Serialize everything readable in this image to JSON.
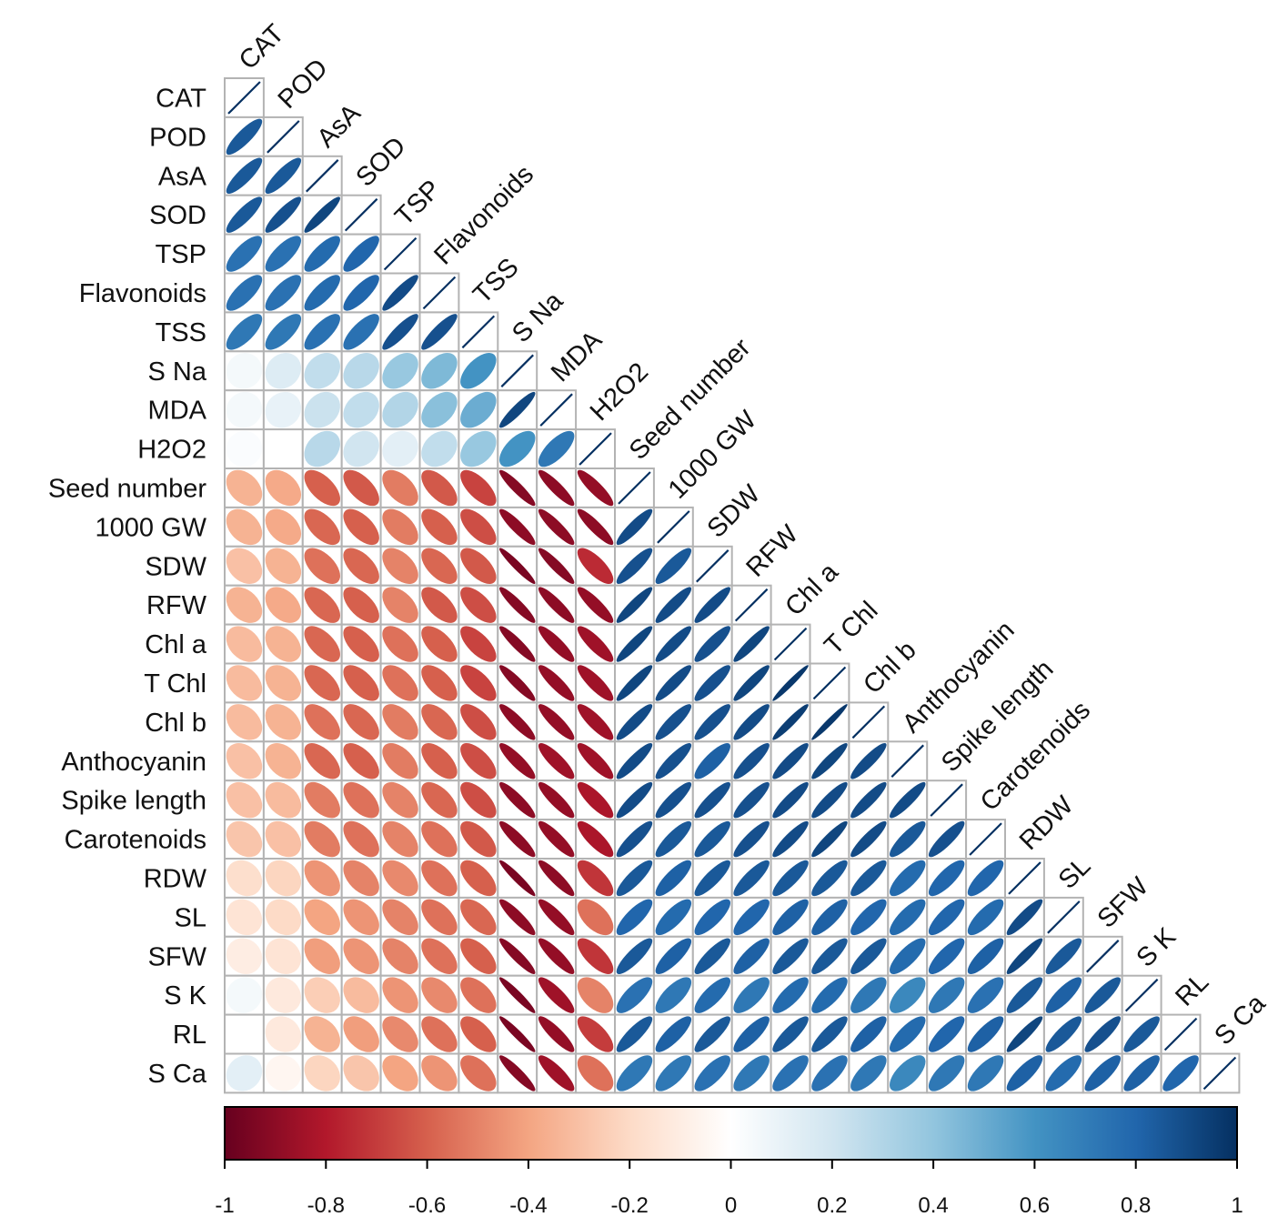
{
  "chart_data": {
    "type": "heatmap",
    "subtype": "correlation-ellipse-lower-triangle",
    "variables": [
      "CAT",
      "POD",
      "AsA",
      "SOD",
      "TSP",
      "Flavonoids",
      "TSS",
      "S Na",
      "MDA",
      "H2O2",
      "Seed number",
      "1000 GW",
      "SDW",
      "RFW",
      "Chl a",
      "T Chl",
      "Chl b",
      "Anthocyanin",
      "Spike length",
      "Carotenoids",
      "RDW",
      "SL",
      "SFW",
      "S K",
      "RL",
      "S Ca"
    ],
    "correlations": [
      [
        1
      ],
      [
        0.85,
        1
      ],
      [
        0.85,
        0.85,
        1
      ],
      [
        0.85,
        0.88,
        0.92,
        1
      ],
      [
        0.75,
        0.75,
        0.78,
        0.8,
        1
      ],
      [
        0.75,
        0.75,
        0.78,
        0.8,
        0.9,
        1
      ],
      [
        0.72,
        0.72,
        0.75,
        0.75,
        0.88,
        0.88,
        1
      ],
      [
        0.05,
        0.15,
        0.25,
        0.28,
        0.38,
        0.45,
        0.6,
        1
      ],
      [
        0.05,
        0.1,
        0.22,
        0.25,
        0.3,
        0.42,
        0.5,
        0.92,
        1
      ],
      [
        0.02,
        0.0,
        0.28,
        0.2,
        0.12,
        0.25,
        0.38,
        0.6,
        0.72,
        1
      ],
      [
        -0.35,
        -0.38,
        -0.6,
        -0.62,
        -0.52,
        -0.62,
        -0.68,
        -0.92,
        -0.9,
        -0.88,
        1
      ],
      [
        -0.35,
        -0.38,
        -0.58,
        -0.6,
        -0.52,
        -0.6,
        -0.65,
        -0.9,
        -0.9,
        -0.9,
        0.9,
        1
      ],
      [
        -0.3,
        -0.35,
        -0.55,
        -0.58,
        -0.5,
        -0.58,
        -0.62,
        -0.95,
        -0.92,
        -0.75,
        0.88,
        0.85,
        1
      ],
      [
        -0.35,
        -0.38,
        -0.58,
        -0.6,
        -0.5,
        -0.62,
        -0.65,
        -0.92,
        -0.9,
        -0.88,
        0.92,
        0.9,
        0.9,
        1
      ],
      [
        -0.32,
        -0.35,
        -0.58,
        -0.6,
        -0.55,
        -0.6,
        -0.68,
        -0.92,
        -0.88,
        -0.85,
        0.92,
        0.9,
        0.88,
        0.92,
        1
      ],
      [
        -0.32,
        -0.35,
        -0.58,
        -0.6,
        -0.55,
        -0.6,
        -0.68,
        -0.92,
        -0.88,
        -0.85,
        0.92,
        0.9,
        0.88,
        0.92,
        0.97,
        1
      ],
      [
        -0.32,
        -0.35,
        -0.55,
        -0.58,
        -0.52,
        -0.58,
        -0.65,
        -0.9,
        -0.88,
        -0.85,
        0.9,
        0.88,
        0.88,
        0.9,
        0.95,
        0.97,
        1
      ],
      [
        -0.3,
        -0.35,
        -0.58,
        -0.6,
        -0.52,
        -0.6,
        -0.65,
        -0.88,
        -0.85,
        -0.85,
        0.9,
        0.88,
        0.82,
        0.88,
        0.9,
        0.92,
        0.9,
        1
      ],
      [
        -0.3,
        -0.32,
        -0.52,
        -0.55,
        -0.5,
        -0.58,
        -0.65,
        -0.9,
        -0.88,
        -0.82,
        0.9,
        0.88,
        0.88,
        0.88,
        0.9,
        0.9,
        0.9,
        0.9,
        1
      ],
      [
        -0.28,
        -0.3,
        -0.52,
        -0.55,
        -0.5,
        -0.55,
        -0.62,
        -0.9,
        -0.88,
        -0.82,
        0.88,
        0.85,
        0.85,
        0.88,
        0.9,
        0.92,
        0.9,
        0.85,
        0.88,
        1
      ],
      [
        -0.18,
        -0.22,
        -0.45,
        -0.5,
        -0.48,
        -0.55,
        -0.6,
        -0.95,
        -0.9,
        -0.72,
        0.85,
        0.82,
        0.85,
        0.85,
        0.85,
        0.85,
        0.85,
        0.78,
        0.8,
        0.8,
        1
      ],
      [
        -0.15,
        -0.2,
        -0.4,
        -0.45,
        -0.5,
        -0.55,
        -0.58,
        -0.9,
        -0.88,
        -0.55,
        0.8,
        0.78,
        0.8,
        0.8,
        0.82,
        0.82,
        0.8,
        0.78,
        0.8,
        0.78,
        0.9,
        1
      ],
      [
        -0.1,
        -0.15,
        -0.42,
        -0.45,
        -0.5,
        -0.55,
        -0.6,
        -0.92,
        -0.88,
        -0.72,
        0.85,
        0.82,
        0.85,
        0.82,
        0.85,
        0.85,
        0.85,
        0.78,
        0.8,
        0.82,
        0.92,
        0.85,
        1
      ],
      [
        0.05,
        -0.12,
        -0.25,
        -0.32,
        -0.45,
        -0.48,
        -0.55,
        -0.95,
        -0.85,
        -0.5,
        0.75,
        0.72,
        0.78,
        0.72,
        0.78,
        0.78,
        0.72,
        0.65,
        0.72,
        0.75,
        0.85,
        0.82,
        0.85,
        1
      ],
      [
        0.0,
        -0.12,
        -0.35,
        -0.42,
        -0.48,
        -0.55,
        -0.6,
        -0.95,
        -0.88,
        -0.7,
        0.85,
        0.82,
        0.85,
        0.82,
        0.85,
        0.85,
        0.82,
        0.78,
        0.8,
        0.82,
        0.92,
        0.85,
        0.88,
        0.85,
        1
      ],
      [
        0.12,
        -0.05,
        -0.22,
        -0.28,
        -0.4,
        -0.45,
        -0.55,
        -0.92,
        -0.85,
        -0.55,
        0.72,
        0.72,
        0.75,
        0.72,
        0.75,
        0.75,
        0.72,
        0.65,
        0.72,
        0.72,
        0.82,
        0.78,
        0.82,
        0.82,
        0.8,
        1
      ]
    ],
    "colorbar": {
      "range": [
        -1,
        1
      ],
      "ticks": [
        "-1",
        "-0.8",
        "-0.6",
        "-0.4",
        "-0.2",
        "0",
        "0.2",
        "0.4",
        "0.6",
        "0.8",
        "1"
      ],
      "colors": {
        "neg_full": "#67001f",
        "neg_strong": "#b2182b",
        "neg_mid": "#d6604d",
        "neg_light": "#f4a582",
        "neg_pale": "#fddbc7",
        "zero": "#ffffff",
        "pos_pale": "#d1e5f0",
        "pos_light": "#92c5de",
        "pos_mid": "#4393c3",
        "pos_strong": "#2166ac",
        "pos_full": "#053061"
      }
    },
    "grid_color": "#b3b3b3",
    "title": "",
    "xlabel": "",
    "ylabel": ""
  }
}
